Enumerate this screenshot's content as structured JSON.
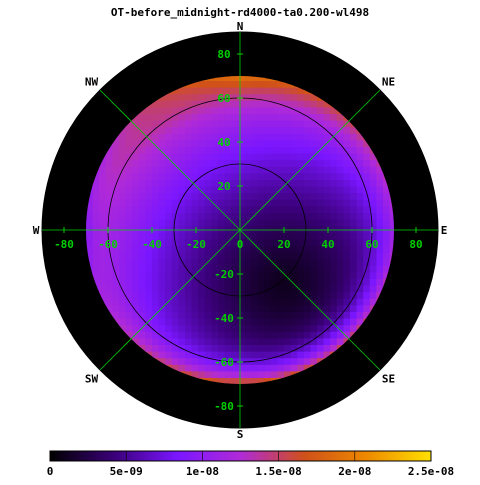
{
  "chart_data": {
    "type": "heatmap",
    "projection": "polar-sky",
    "title": "OT-before_midnight-rd4000-ta0.200-wl498",
    "compass": [
      {
        "label": "N",
        "az": 0
      },
      {
        "label": "NE",
        "az": 45
      },
      {
        "label": "E",
        "az": 90
      },
      {
        "label": "SE",
        "az": 135
      },
      {
        "label": "S",
        "az": 180
      },
      {
        "label": "SW",
        "az": 225
      },
      {
        "label": "W",
        "az": 270
      },
      {
        "label": "NW",
        "az": 315
      }
    ],
    "x_ticks": [
      -80,
      -60,
      -40,
      -20,
      0,
      20,
      40,
      60,
      80
    ],
    "y_ticks": [
      80,
      60,
      40,
      20,
      0,
      -20,
      -40,
      -60,
      -80
    ],
    "range": [
      -90,
      90
    ],
    "data_radius": 70,
    "contour_levels": [
      30,
      60
    ],
    "colorbar": {
      "min": 0,
      "max": 2.5e-08,
      "ticks": [
        0,
        5e-09,
        1e-08,
        1.5e-08,
        2e-08,
        2.5e-08
      ],
      "tick_labels": [
        "0",
        "5e-09",
        "1e-08",
        "1.5e-08",
        "2e-08",
        "2.5e-08"
      ],
      "colors": [
        "#000000",
        "#3a0078",
        "#7a16ff",
        "#b02ad8",
        "#d0501a",
        "#ee8a00",
        "#ffe000"
      ]
    },
    "field": {
      "min_location": {
        "x": 20,
        "y": -25
      },
      "min_value": 1e-09,
      "rim_value": 1.4e-08,
      "limb_values_by_azimuth": [
        {
          "az": 0,
          "value": 1.9e-08
        },
        {
          "az": 90,
          "value": 1.1e-08
        },
        {
          "az": 180,
          "value": 1.8e-08
        },
        {
          "az": 270,
          "value": 9e-09
        }
      ]
    },
    "colors": {
      "grid": "#00d000",
      "contour": "#000000",
      "horizon": "#000000"
    }
  }
}
